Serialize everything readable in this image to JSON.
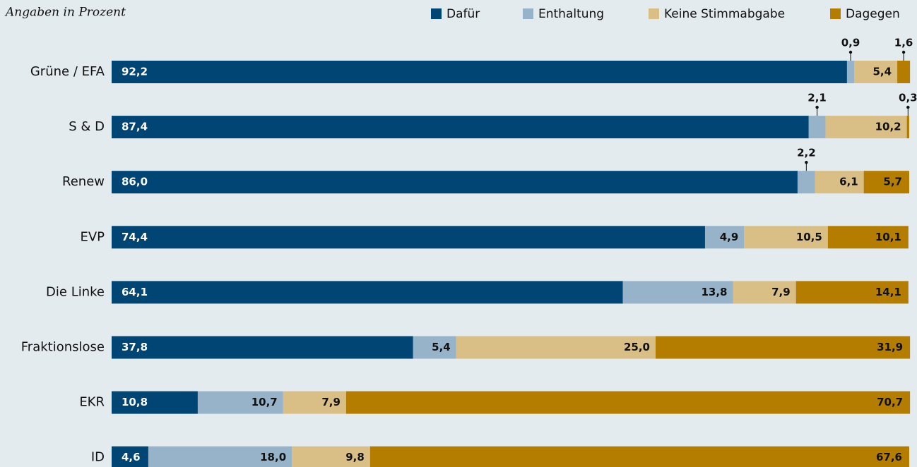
{
  "chart_data": {
    "type": "stacked_bar_horizontal",
    "subtitle": "Angaben in Prozent",
    "categories": [
      "Grüne / EFA",
      "S & D",
      "Renew",
      "EVP",
      "Die Linke",
      "Fraktionslose",
      "EKR",
      "ID"
    ],
    "xlim": [
      0,
      100
    ],
    "series": [
      {
        "name": "Dafür",
        "color": "#004574",
        "values": [
          92.2,
          87.4,
          86.0,
          74.4,
          64.1,
          37.8,
          10.8,
          4.6
        ],
        "value_labels": [
          "92,2",
          "87,4",
          "86,0",
          "74,4",
          "64,1",
          "37,8",
          "10,8",
          "4,6"
        ]
      },
      {
        "name": "Enthaltung",
        "color": "#97b3c9",
        "values": [
          0.9,
          2.1,
          2.2,
          4.9,
          13.8,
          5.4,
          10.7,
          18.0
        ],
        "value_labels": [
          "0,9",
          "2,1",
          "2,2",
          "4,9",
          "13,8",
          "5,4",
          "10,7",
          "18,0"
        ]
      },
      {
        "name": "Keine Stimmabgabe",
        "color": "#d9be86",
        "values": [
          5.4,
          10.2,
          6.1,
          10.5,
          7.9,
          25.0,
          7.9,
          9.8
        ],
        "value_labels": [
          "5,4",
          "10,2",
          "6,1",
          "10,5",
          "7,9",
          "25,0",
          "7,9",
          "9,8"
        ]
      },
      {
        "name": "Dagegen",
        "color": "#b47d00",
        "values": [
          1.6,
          0.3,
          5.7,
          10.1,
          14.1,
          31.9,
          70.7,
          67.6
        ],
        "value_labels": [
          "1,6",
          "0,3",
          "5,7",
          "10,1",
          "14,1",
          "31,9",
          "70,7",
          "67,6"
        ]
      }
    ]
  }
}
